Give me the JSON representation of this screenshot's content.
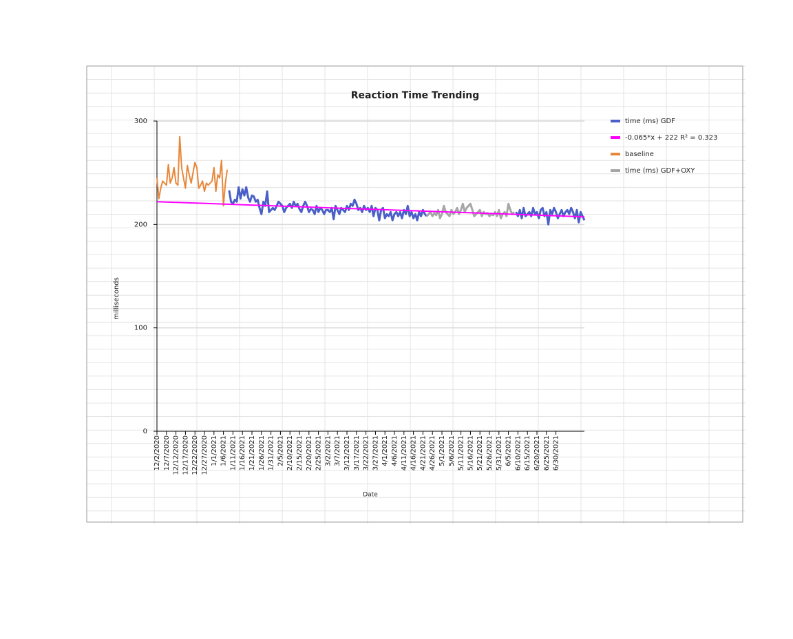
{
  "chart_data": {
    "type": "line",
    "title": "Reaction Time Trending",
    "x_label": "Date",
    "y_label": "milliseconds",
    "ylim": [
      0,
      300
    ],
    "yticks": [
      0,
      100,
      200,
      300
    ],
    "grid": true,
    "legend": "right",
    "categories": [
      "12/2/2020",
      null,
      null,
      null,
      null,
      "12/7/2020",
      null,
      null,
      null,
      null,
      "12/12/2020",
      null,
      null,
      null,
      null,
      "12/17/2020",
      null,
      null,
      null,
      null,
      "12/22/2020",
      null,
      null,
      null,
      null,
      "12/27/2020",
      null,
      null,
      null,
      null,
      "1/1/2021",
      null,
      null,
      null,
      null,
      "1/6/2021",
      null,
      null,
      null,
      null,
      "1/11/2021",
      null,
      null,
      null,
      null,
      "1/16/2021",
      null,
      null,
      null,
      null,
      "1/21/2021",
      null,
      null,
      null,
      null,
      "1/26/2021",
      null,
      null,
      null,
      null,
      "1/31/2021",
      null,
      null,
      null,
      null,
      "2/5/2021",
      null,
      null,
      null,
      null,
      "2/10/2021",
      null,
      null,
      null,
      null,
      "2/15/2021",
      null,
      null,
      null,
      null,
      "2/20/2021",
      null,
      null,
      null,
      null,
      "2/25/2021",
      null,
      null,
      null,
      null,
      "3/2/2021",
      null,
      null,
      null,
      null,
      "3/7/2021",
      null,
      null,
      null,
      null,
      "3/12/2021",
      null,
      null,
      null,
      null,
      "3/17/2021",
      null,
      null,
      null,
      null,
      "3/22/2021",
      null,
      null,
      null,
      null,
      "3/27/2021",
      null,
      null,
      null,
      null,
      "4/1/2021",
      null,
      null,
      null,
      null,
      "4/6/2021",
      null,
      null,
      null,
      null,
      "4/11/2021",
      null,
      null,
      null,
      null,
      "4/16/2021",
      null,
      null,
      null,
      null,
      "4/21/2021",
      null,
      null,
      null,
      null,
      "4/26/2021",
      null,
      null,
      null,
      null,
      "5/1/2021",
      null,
      null,
      null,
      null,
      "5/6/2021",
      null,
      null,
      null,
      null,
      "5/11/2021",
      null,
      null,
      null,
      null,
      "5/16/2021",
      null,
      null,
      null,
      null,
      "5/21/2021",
      null,
      null,
      null,
      null,
      "5/26/2021",
      null,
      null,
      null,
      null,
      "5/31/2021",
      null,
      null,
      null,
      null,
      "6/5/2021",
      null,
      null,
      null,
      null,
      "6/10/2021",
      null,
      null,
      null,
      null,
      "6/15/2021",
      null,
      null,
      null,
      null,
      "6/20/2021",
      null,
      null,
      null,
      null,
      "6/25/2021",
      null,
      null,
      null,
      null,
      "6/30/2021",
      null,
      null,
      null,
      null,
      null,
      null,
      null,
      null,
      null,
      null,
      null,
      null,
      null,
      null,
      null
    ],
    "series": [
      {
        "name": "time (ms) GDF",
        "color": "#4a5fc7",
        "values": [
          null,
          null,
          null,
          null,
          null,
          null,
          null,
          null,
          null,
          null,
          null,
          null,
          null,
          null,
          null,
          null,
          null,
          null,
          null,
          null,
          null,
          null,
          null,
          null,
          null,
          null,
          null,
          null,
          null,
          null,
          null,
          null,
          null,
          null,
          null,
          null,
          null,
          null,
          233,
          222,
          220,
          224,
          222,
          236,
          225,
          234,
          228,
          236,
          226,
          222,
          228,
          227,
          222,
          224,
          216,
          210,
          222,
          218,
          232,
          212,
          214,
          216,
          214,
          218,
          222,
          220,
          218,
          212,
          216,
          218,
          220,
          216,
          222,
          218,
          220,
          215,
          212,
          218,
          222,
          218,
          212,
          215,
          214,
          210,
          218,
          212,
          216,
          214,
          210,
          214,
          214,
          212,
          216,
          205,
          218,
          214,
          210,
          216,
          214,
          212,
          218,
          214,
          220,
          218,
          224,
          220,
          214,
          216,
          212,
          218,
          214,
          216,
          212,
          218,
          208,
          216,
          214,
          204,
          214,
          216,
          206,
          210,
          208,
          212,
          204,
          210,
          212,
          208,
          212,
          206,
          214,
          210,
          218,
          208,
          212,
          206,
          210,
          204,
          212,
          208,
          214,
          210,
          208,
          null,
          null,
          null,
          null,
          null,
          null,
          null,
          null,
          null,
          null,
          null,
          null,
          null,
          null,
          null,
          null,
          null,
          null,
          null,
          null,
          null,
          null,
          null,
          null,
          null,
          null,
          null,
          null,
          null,
          null,
          null,
          null,
          null,
          null,
          null,
          null,
          null,
          null,
          null,
          null,
          null,
          null,
          null,
          null,
          null,
          null,
          212,
          208,
          214,
          206,
          216,
          208,
          210,
          212,
          208,
          216,
          210,
          212,
          206,
          214,
          216,
          208,
          212,
          200,
          214,
          210,
          216,
          212,
          206,
          210,
          214,
          208,
          212,
          214,
          210,
          216,
          212,
          206,
          214,
          202,
          212,
          208,
          204
        ]
      },
      {
        "name": "baseline",
        "color": "#e8873a",
        "values": [
          245,
          225,
          235,
          242,
          240,
          238,
          258,
          240,
          245,
          255,
          240,
          238,
          285,
          255,
          245,
          235,
          257,
          248,
          240,
          250,
          260,
          255,
          235,
          238,
          242,
          232,
          240,
          238,
          240,
          242,
          255,
          232,
          248,
          245,
          262,
          218,
          240,
          253,
          null,
          null,
          null,
          null,
          null,
          null,
          null,
          null,
          null,
          null,
          null,
          null,
          null,
          null,
          null,
          null,
          null,
          null,
          null,
          null,
          null,
          null,
          null,
          null,
          null,
          null,
          null,
          null,
          null,
          null,
          null,
          null,
          null,
          null,
          null,
          null,
          null,
          null,
          null,
          null,
          null,
          null,
          null,
          null,
          null,
          null,
          null,
          null,
          null,
          null,
          null,
          null,
          null,
          null,
          null,
          null,
          null,
          null,
          null,
          null,
          null,
          null,
          null,
          null,
          null,
          null,
          null,
          null,
          null,
          null,
          null,
          null,
          null,
          null,
          null,
          null,
          null,
          null,
          null,
          null,
          null,
          null,
          null,
          null,
          null,
          null,
          null,
          null,
          null,
          null,
          null,
          null,
          null,
          null,
          null,
          null,
          null,
          null,
          null,
          null,
          null,
          null,
          null,
          null,
          null,
          null,
          null,
          null,
          null,
          null,
          null,
          null,
          null,
          null,
          null,
          null,
          null,
          null,
          null,
          null,
          null,
          null,
          null,
          null,
          null,
          null,
          null,
          null,
          null,
          null,
          null,
          null,
          null,
          null,
          null,
          null,
          null,
          null,
          null,
          null,
          null,
          null,
          null,
          null,
          null,
          null,
          null,
          null,
          null,
          null,
          null,
          null,
          null,
          null,
          null,
          null,
          null,
          null,
          null,
          null,
          null,
          null,
          null,
          null,
          null,
          null,
          null,
          null,
          null,
          null,
          null,
          null,
          null,
          null,
          null,
          null,
          null,
          null,
          null,
          null,
          null,
          null,
          null,
          null,
          null,
          null,
          null,
          null
        ]
      },
      {
        "name": "time (ms) GDF+OXY",
        "color": "#a6a6a6",
        "values": [
          null,
          null,
          null,
          null,
          null,
          null,
          null,
          null,
          null,
          null,
          null,
          null,
          null,
          null,
          null,
          null,
          null,
          null,
          null,
          null,
          null,
          null,
          null,
          null,
          null,
          null,
          null,
          null,
          null,
          null,
          null,
          null,
          null,
          null,
          null,
          null,
          null,
          null,
          null,
          null,
          null,
          null,
          null,
          null,
          null,
          null,
          null,
          null,
          null,
          null,
          null,
          null,
          null,
          null,
          null,
          null,
          null,
          null,
          null,
          null,
          null,
          null,
          null,
          null,
          null,
          null,
          null,
          null,
          null,
          null,
          null,
          null,
          null,
          null,
          null,
          null,
          null,
          null,
          null,
          null,
          null,
          null,
          null,
          null,
          null,
          null,
          null,
          null,
          null,
          null,
          null,
          null,
          null,
          null,
          null,
          null,
          null,
          null,
          null,
          null,
          null,
          null,
          null,
          null,
          null,
          null,
          null,
          null,
          null,
          null,
          null,
          null,
          null,
          null,
          null,
          null,
          null,
          null,
          null,
          null,
          null,
          null,
          null,
          null,
          null,
          null,
          null,
          null,
          null,
          null,
          null,
          null,
          null,
          null,
          null,
          null,
          null,
          null,
          null,
          null,
          null,
          null,
          208,
          210,
          212,
          208,
          211,
          209,
          214,
          206,
          210,
          218,
          212,
          210,
          208,
          214,
          210,
          212,
          216,
          210,
          214,
          220,
          212,
          216,
          218,
          220,
          214,
          208,
          210,
          212,
          214,
          208,
          212,
          210,
          211,
          208,
          210,
          209,
          212,
          208,
          214,
          206,
          210,
          212,
          208,
          220,
          214,
          210,
          212,
          null,
          null,
          null,
          null,
          null,
          null,
          null,
          null,
          null,
          null,
          null,
          null,
          null,
          null,
          null,
          null,
          null,
          null,
          null,
          null,
          null,
          null,
          null,
          null,
          null,
          null,
          null,
          null,
          null,
          null,
          null,
          null,
          null,
          null,
          null,
          null,
          null
        ]
      }
    ],
    "trendline": {
      "name": "-0.065*x + 222 R² = 0.323",
      "color": "#ff00ff",
      "values": [
        222,
        207.4
      ]
    }
  }
}
